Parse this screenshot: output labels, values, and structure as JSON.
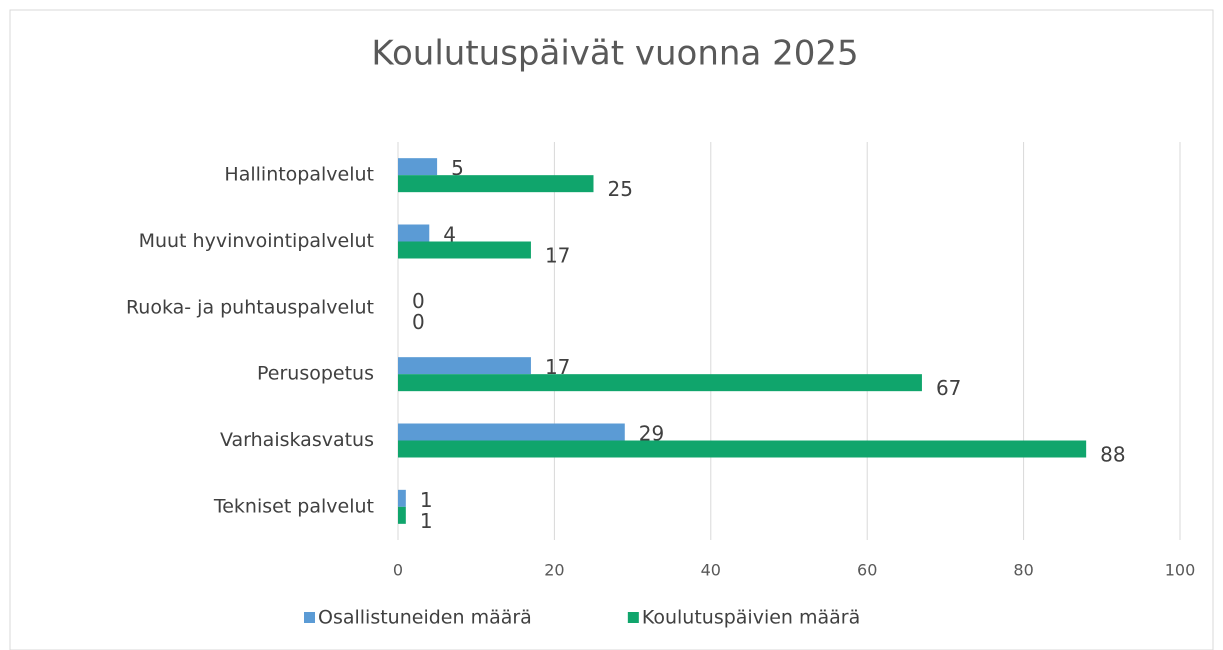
{
  "chart_data": {
    "type": "hbar",
    "title": "Koulutuspäivät vuonna 2025",
    "categories": [
      "Hallintopalvelut",
      "Muut hyvinvointipalvelut",
      "Ruoka- ja puhtauspalvelut",
      "Perusopetus",
      "Varhaiskasvatus",
      "Tekniset palvelut"
    ],
    "series": [
      {
        "name": "Osallistuneiden määrä",
        "color": "#5b9bd5",
        "values": [
          5,
          4,
          0,
          17,
          29,
          1
        ]
      },
      {
        "name": "Koulutuspäivien määrä",
        "color": "#10a56c",
        "values": [
          25,
          17,
          0,
          67,
          88,
          1
        ]
      }
    ],
    "xlim": [
      0,
      100
    ],
    "xticks": [
      0,
      20,
      40,
      60,
      80,
      100
    ],
    "grid": true,
    "legend": "bottom"
  }
}
